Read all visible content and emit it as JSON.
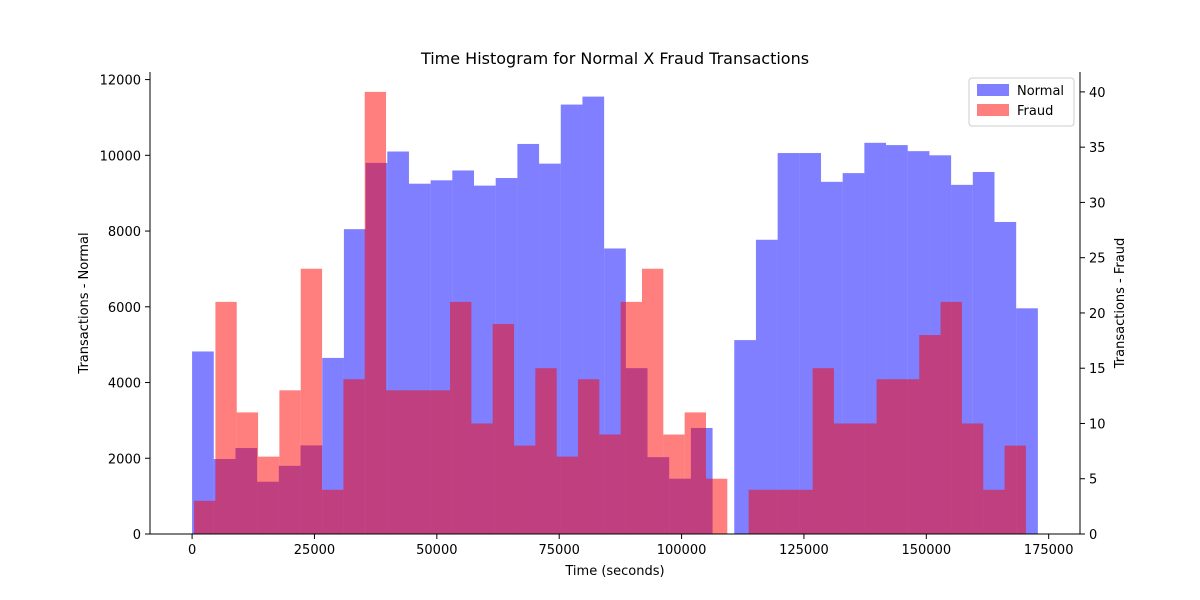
{
  "chart_data": {
    "type": "bar",
    "title": "Time Histogram for Normal X Fraud Transactions",
    "xlabel": "Time (seconds)",
    "ylabel_left": "Transactions - Normal",
    "ylabel_right": "Transactions - Fraud",
    "xlim": [
      -8600,
      181400
    ],
    "ylim_left": [
      0,
      12200
    ],
    "ylim_right": [
      0,
      41.8
    ],
    "x_ticks": [
      0,
      25000,
      50000,
      75000,
      100000,
      125000,
      150000,
      175000
    ],
    "y_ticks_left": [
      0,
      2000,
      4000,
      6000,
      8000,
      10000,
      12000
    ],
    "y_ticks_right": [
      0,
      5,
      10,
      15,
      20,
      25,
      30,
      35,
      40
    ],
    "legend": {
      "placement": "top-right"
    },
    "grid": false,
    "series": [
      {
        "name": "Normal",
        "axis": "left",
        "color": "#0000ff",
        "alpha": 0.5,
        "bin_start": 0,
        "bin_end": 172792,
        "values": [
          4820,
          1980,
          2270,
          1380,
          1800,
          2340,
          4650,
          8050,
          9800,
          10100,
          9250,
          9340,
          9600,
          9200,
          9400,
          10300,
          9780,
          11340,
          11550,
          7540,
          4380,
          2030,
          1460,
          2800,
          0,
          5120,
          7770,
          10060,
          10060,
          9300,
          9530,
          10330,
          10270,
          10110,
          10000,
          9220,
          9560,
          8240,
          5960
        ]
      },
      {
        "name": "Fraud",
        "axis": "right",
        "color": "#ff0000",
        "alpha": 0.5,
        "bin_start": 406,
        "bin_end": 170348,
        "values": [
          3,
          21,
          11,
          7,
          13,
          24,
          4,
          14,
          40,
          13,
          13,
          13,
          21,
          10,
          19,
          8,
          15,
          7,
          14,
          9,
          21,
          24,
          9,
          11,
          5,
          0,
          4,
          4,
          4,
          15,
          10,
          10,
          14,
          14,
          18,
          21,
          10,
          4,
          8
        ]
      }
    ]
  }
}
